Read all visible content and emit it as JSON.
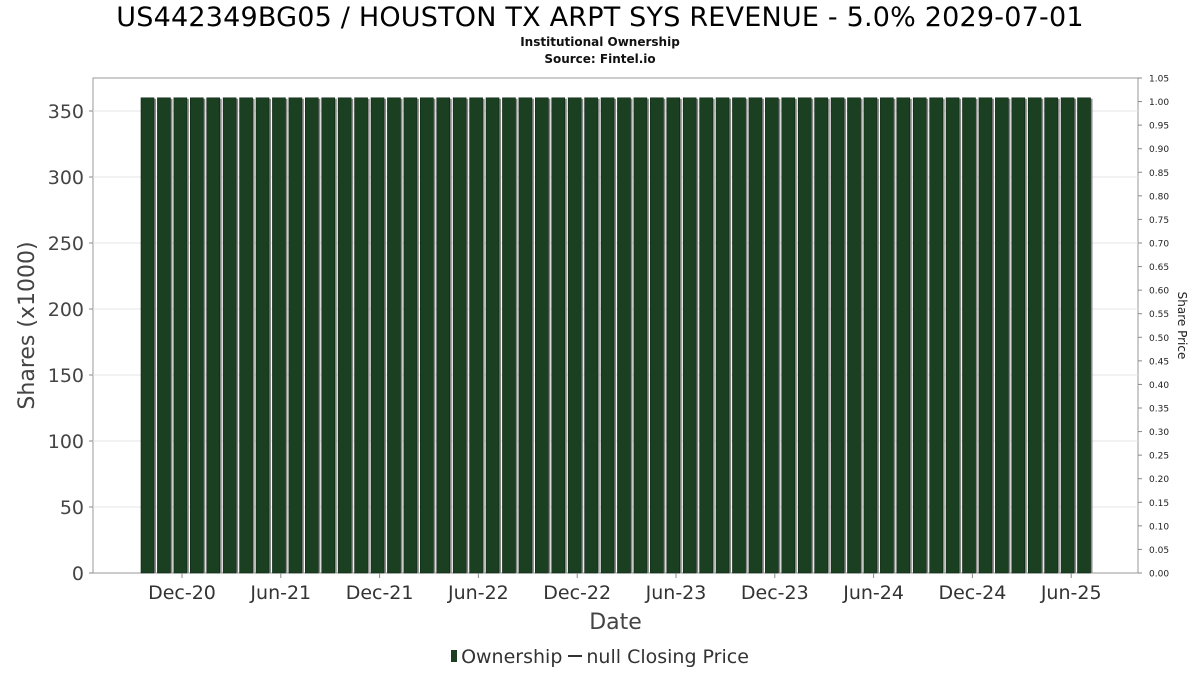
{
  "chart_data": {
    "type": "bar",
    "title": "US442349BG05 / HOUSTON TX ARPT SYS REVENUE - 5.0% 2029-07-01",
    "subtitle_lines": [
      "Institutional Ownership",
      "Source: Fintel.io"
    ],
    "xlabel": "Date",
    "ylabel": "Shares (x1000)",
    "y2label": "Share Price",
    "ylim": [
      0,
      375
    ],
    "y2lim": [
      0,
      1.05
    ],
    "yticks": [
      0,
      50,
      100,
      150,
      200,
      250,
      300,
      350
    ],
    "y2ticks": [
      "0.00",
      "0.05",
      "0.10",
      "0.15",
      "0.20",
      "0.25",
      "0.30",
      "0.35",
      "0.40",
      "0.45",
      "0.50",
      "0.55",
      "0.60",
      "0.65",
      "0.70",
      "0.75",
      "0.80",
      "0.85",
      "0.90",
      "0.95",
      "1.00",
      "1.05"
    ],
    "xticks": [
      "Dec-20",
      "Jun-21",
      "Dec-21",
      "Jun-22",
      "Dec-22",
      "Jun-23",
      "Dec-23",
      "Jun-24",
      "Dec-24",
      "Jun-25"
    ],
    "grid": true,
    "legend_position": "bottom",
    "series": [
      {
        "name": "Ownership",
        "color": "#1a4021",
        "values": [
          360,
          360,
          360,
          360,
          360,
          360,
          360,
          360,
          360,
          360,
          360,
          360,
          360,
          360,
          360,
          360,
          360,
          360,
          360,
          360,
          360,
          360,
          360,
          360,
          360,
          360,
          360,
          360,
          360,
          360,
          360,
          360,
          360,
          360,
          360,
          360,
          360,
          360,
          360,
          360,
          360,
          360,
          360,
          360,
          360,
          360,
          360,
          360,
          360,
          360,
          360,
          360,
          360,
          360,
          360,
          360,
          360,
          360
        ]
      }
    ],
    "legend": [
      {
        "label": "Ownership",
        "kind": "bar"
      },
      {
        "label": "null Closing Price",
        "kind": "line"
      }
    ]
  }
}
